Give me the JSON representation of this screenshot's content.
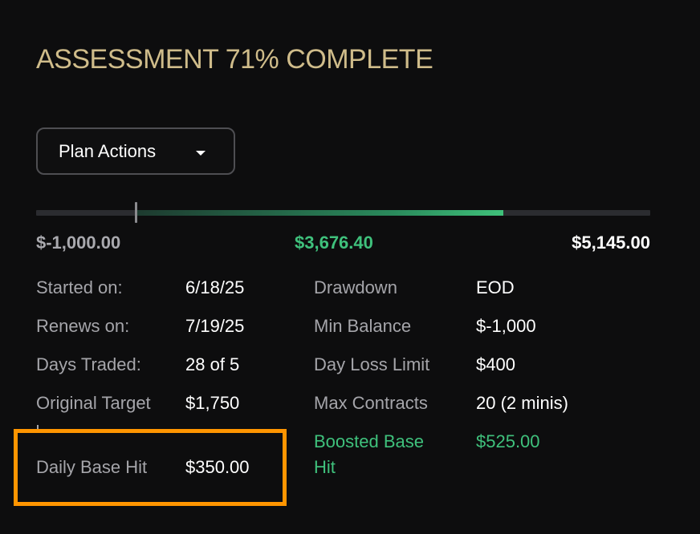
{
  "header": {
    "title": "ASSESSMENT 71% COMPLETE"
  },
  "plan_actions": {
    "label": "Plan Actions",
    "icon": "caret-down-icon"
  },
  "progress": {
    "min_label": "$-1,000.00",
    "current_label": "$3,676.40",
    "max_label": "$5,145.00",
    "min_value": -1000,
    "current_value": 3676.4,
    "max_value": 5145,
    "accent_color": "#3fc17c"
  },
  "stats_left": [
    {
      "label": "Started on:",
      "value": "6/18/25"
    },
    {
      "label": "Renews on:",
      "value": "7/19/25"
    },
    {
      "label": "Days Traded:",
      "value": "28 of 5"
    },
    {
      "label": "Original Target",
      "value": "$1,750"
    },
    {
      "label": "Daily Base Hit",
      "value": "$350.00"
    }
  ],
  "stats_right": [
    {
      "label": "Drawdown",
      "value": "EOD"
    },
    {
      "label": "Min Balance",
      "value": "$-1,000"
    },
    {
      "label": "Day Loss Limit",
      "value": "$400"
    },
    {
      "label": "Max Contracts",
      "value": "20 (2 minis)"
    },
    {
      "label": "Boosted Base",
      "label2": "Hit",
      "value": "$525.00"
    }
  ],
  "colors": {
    "title": "#cfbc8a",
    "highlight_border": "#ff9500",
    "positive": "#3fc17c"
  }
}
